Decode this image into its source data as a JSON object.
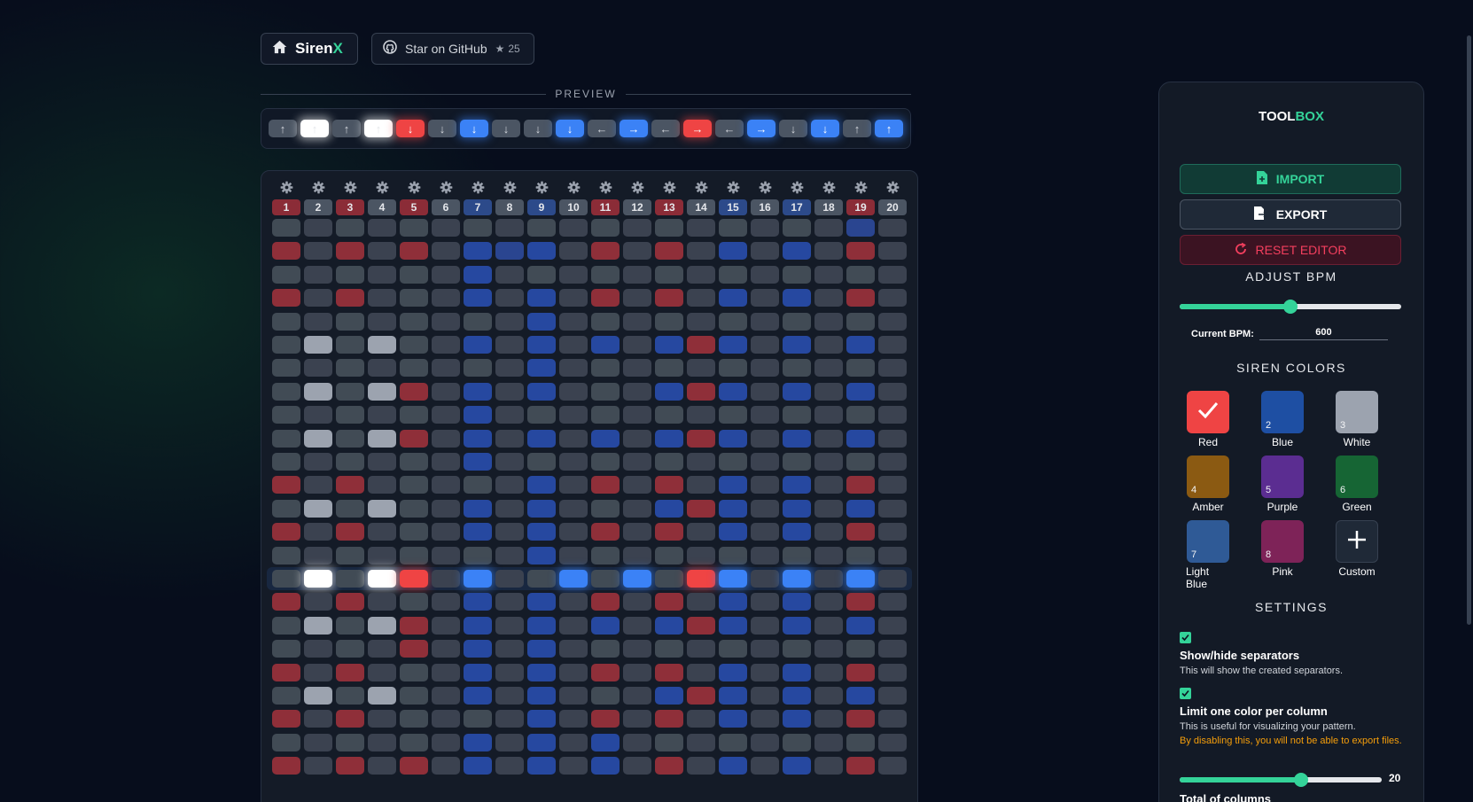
{
  "header": {
    "brand_name": "Siren",
    "brand_accent": "X",
    "github_label": "Star on GitHub",
    "github_stars": "25"
  },
  "preview": {
    "title": "PREVIEW",
    "items": [
      {
        "color": "gray",
        "arrow": "↑"
      },
      {
        "color": "white",
        "arrow": "↑"
      },
      {
        "color": "gray",
        "arrow": "↑"
      },
      {
        "color": "white",
        "arrow": "↑"
      },
      {
        "color": "red",
        "arrow": "↓"
      },
      {
        "color": "gray",
        "arrow": "↓"
      },
      {
        "color": "blue",
        "arrow": "↓"
      },
      {
        "color": "gray",
        "arrow": "↓"
      },
      {
        "color": "gray",
        "arrow": "↓"
      },
      {
        "color": "blue",
        "arrow": "↓"
      },
      {
        "color": "gray",
        "arrow": "←"
      },
      {
        "color": "blue",
        "arrow": "→"
      },
      {
        "color": "gray",
        "arrow": "←"
      },
      {
        "color": "red",
        "arrow": "→"
      },
      {
        "color": "gray",
        "arrow": "←"
      },
      {
        "color": "blue",
        "arrow": "→"
      },
      {
        "color": "gray",
        "arrow": "↓"
      },
      {
        "color": "blue",
        "arrow": "↓"
      },
      {
        "color": "gray",
        "arrow": "↑"
      },
      {
        "color": "blue",
        "arrow": "↑"
      }
    ]
  },
  "grid": {
    "column_numbers": [
      "1",
      "2",
      "3",
      "4",
      "5",
      "6",
      "7",
      "8",
      "9",
      "10",
      "11",
      "12",
      "13",
      "14",
      "15",
      "16",
      "17",
      "18",
      "19",
      "20"
    ],
    "column_colors": [
      "red",
      "gray",
      "red",
      "gray",
      "red",
      "gray",
      "blue",
      "gray",
      "blue",
      "gray",
      "red",
      "gray",
      "red",
      "gray",
      "blue",
      "gray",
      "blue",
      "gray",
      "red",
      "gray"
    ],
    "active_row": 15,
    "rows": [
      "..................x.",
      "R.R.R.BxB.R.R.B.B.R.",
      "......B.............",
      "R.R...B.B.R.R.B.B.R.",
      "........B...........",
      ".W.W..B.B.B.BRB.B.B.",
      "........B...........",
      ".W.WR.B.B...BRB.B.B.",
      "......B.............",
      ".W.WR.B.B.B.BRB.B.B.",
      "......B.............",
      "R.R.....B.R.R.B.B.R.",
      ".W.W..B.B...BRB.B.B.",
      "R.R...B.B.R.R.B.B.R.",
      "........B...........",
      ".W.WR.B..B.B.RB.B.B.",
      "R.R...B.B.R.R.B.B.R.",
      ".W.WR.B.B.B.BRB.B.B.",
      "....R.B.B...........",
      "R.R...B.B.R.R.B.B.R.",
      ".W.W..B.B...BRB.B.B.",
      "R.R.....B.R.R.B.B.R.",
      "......B.B.B.........",
      "R.R.R.B.B.B.R.B.B.R."
    ]
  },
  "toolbox": {
    "title_main": "TOOL",
    "title_accent": "BOX",
    "import_label": "IMPORT",
    "export_label": "EXPORT",
    "reset_label": "RESET EDITOR",
    "bpm_heading": "ADJUST BPM",
    "bpm_label": "Current BPM:",
    "bpm_value": "600",
    "bpm_fraction": 0.5,
    "colors_heading": "SIREN COLORS",
    "colors": [
      {
        "name": "Red",
        "hex": "#ef4444",
        "index": "",
        "selected": true
      },
      {
        "name": "Blue",
        "hex": "#1e4fa3",
        "index": "2",
        "selected": false
      },
      {
        "name": "White",
        "hex": "#9ca3af",
        "index": "3",
        "selected": false
      },
      {
        "name": "Amber",
        "hex": "#8b5a12",
        "index": "4",
        "selected": false
      },
      {
        "name": "Purple",
        "hex": "#5b2d91",
        "index": "5",
        "selected": false
      },
      {
        "name": "Green",
        "hex": "#166534",
        "index": "6",
        "selected": false
      },
      {
        "name": "Light Blue",
        "hex": "#2f5a96",
        "index": "7",
        "selected": false
      },
      {
        "name": "Pink",
        "hex": "#7e2358",
        "index": "8",
        "selected": false
      },
      {
        "name": "Custom",
        "hex": "#1f2937",
        "index": "",
        "selected": false
      }
    ],
    "settings_heading": "SETTINGS",
    "separators_title": "Show/hide separators",
    "separators_desc": "This will show the created separators.",
    "limit_title": "Limit one color per column",
    "limit_desc": "This is useful for visualizing your pattern.",
    "limit_warning": "By disabling this, you will not be able to export files.",
    "columns_value": "20",
    "columns_fraction": 0.6,
    "columns_title": "Total of columns"
  },
  "colors": {
    "accent": "#34d399",
    "red": "#ef4444",
    "blue": "#3b82f6",
    "white": "#ffffff"
  }
}
